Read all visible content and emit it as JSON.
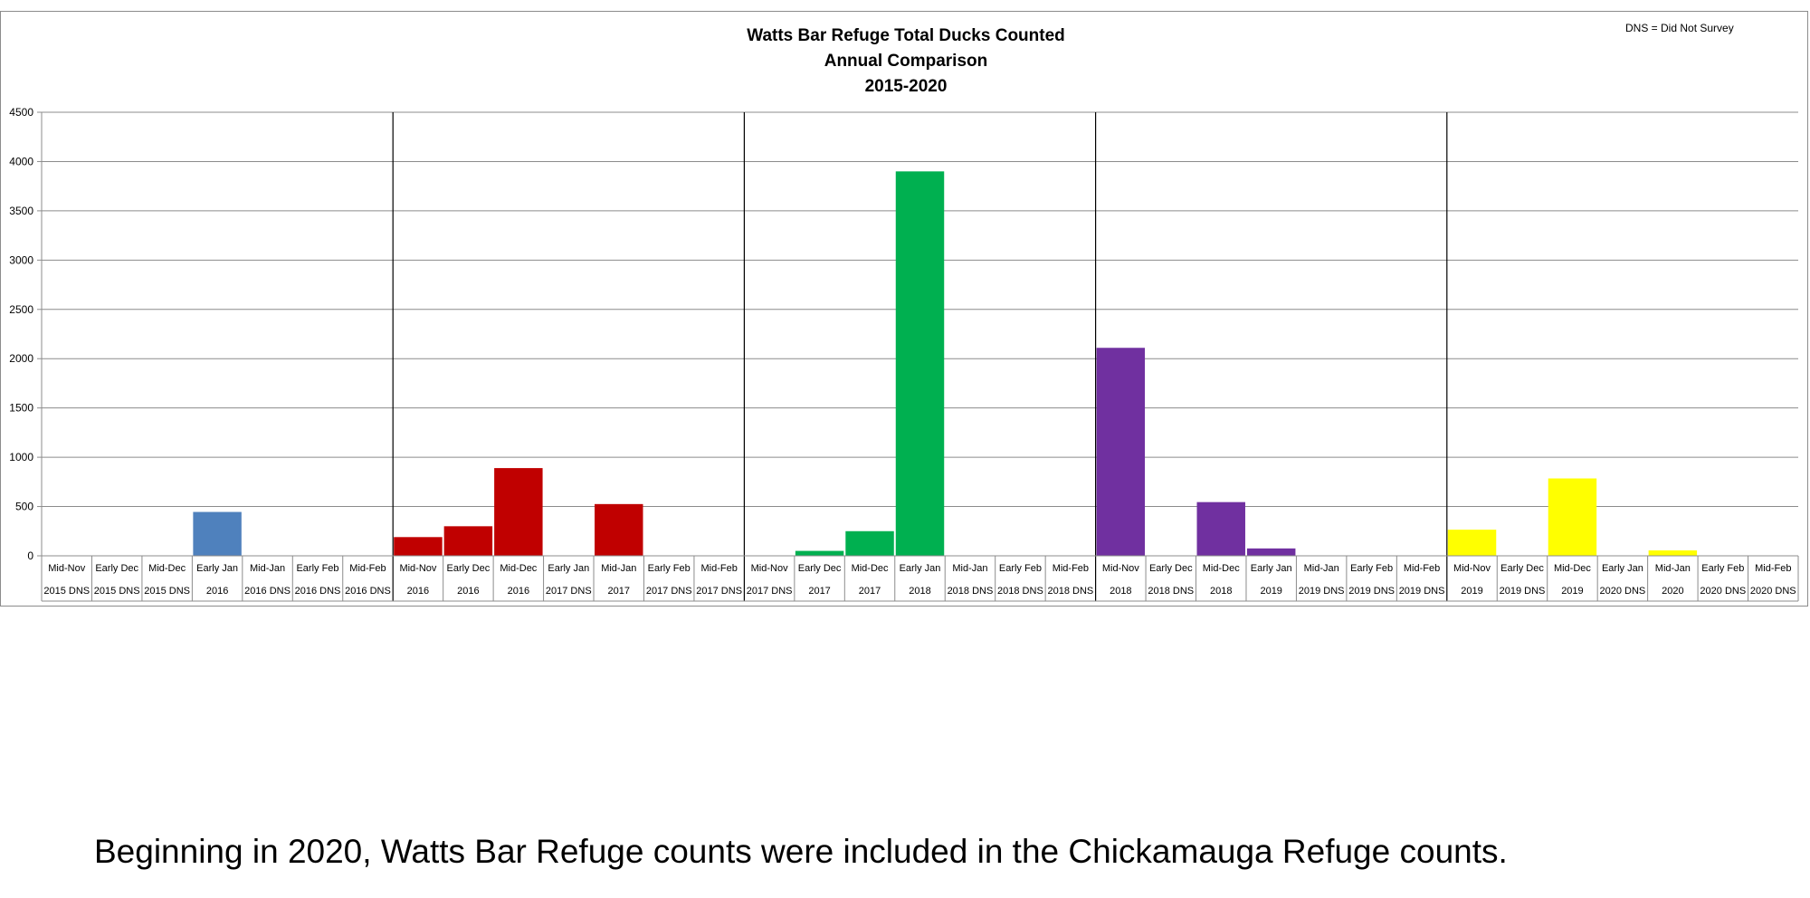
{
  "chart_data": {
    "type": "bar",
    "title": [
      "Watts Bar Refuge Total Ducks Counted",
      "Annual Comparison",
      "2015-2020"
    ],
    "note": "DNS = Did Not Survey",
    "ylim": [
      0,
      4500
    ],
    "yticks": [
      0,
      500,
      1000,
      1500,
      2000,
      2500,
      3000,
      3500,
      4000,
      4500
    ],
    "grid": true,
    "season_colors": [
      "#4f81bd",
      "#c00000",
      "#00b050",
      "#7030a0",
      "#ffff00"
    ],
    "season_boundaries": [
      7,
      14,
      21,
      28
    ],
    "categories": [
      {
        "line1": "Mid-Nov",
        "line2": "2015 DNS",
        "value": 0,
        "season": 0
      },
      {
        "line1": "Early Dec",
        "line2": "2015 DNS",
        "value": 0,
        "season": 0
      },
      {
        "line1": "Mid-Dec",
        "line2": "2015 DNS",
        "value": 0,
        "season": 0
      },
      {
        "line1": "Early Jan",
        "line2": "2016",
        "value": 445,
        "season": 0
      },
      {
        "line1": "Mid-Jan",
        "line2": "2016 DNS",
        "value": 0,
        "season": 0
      },
      {
        "line1": "Early Feb",
        "line2": "2016 DNS",
        "value": 0,
        "season": 0
      },
      {
        "line1": "Mid-Feb",
        "line2": "2016 DNS",
        "value": 0,
        "season": 0
      },
      {
        "line1": "Mid-Nov",
        "line2": "2016",
        "value": 190,
        "season": 1
      },
      {
        "line1": "Early Dec",
        "line2": "2016",
        "value": 300,
        "season": 1
      },
      {
        "line1": "Mid-Dec",
        "line2": "2016",
        "value": 890,
        "season": 1
      },
      {
        "line1": "Early Jan",
        "line2": "2017 DNS",
        "value": 0,
        "season": 1
      },
      {
        "line1": "Mid-Jan",
        "line2": "2017",
        "value": 525,
        "season": 1
      },
      {
        "line1": "Early Feb",
        "line2": "2017 DNS",
        "value": 0,
        "season": 1
      },
      {
        "line1": "Mid-Feb",
        "line2": "2017 DNS",
        "value": 0,
        "season": 1
      },
      {
        "line1": "Mid-Nov",
        "line2": "2017 DNS",
        "value": 0,
        "season": 2
      },
      {
        "line1": "Early Dec",
        "line2": "2017",
        "value": 50,
        "season": 2
      },
      {
        "line1": "Mid-Dec",
        "line2": "2017",
        "value": 250,
        "season": 2
      },
      {
        "line1": "Early Jan",
        "line2": "2018",
        "value": 3900,
        "season": 2
      },
      {
        "line1": "Mid-Jan",
        "line2": "2018 DNS",
        "value": 0,
        "season": 2
      },
      {
        "line1": "Early Feb",
        "line2": "2018 DNS",
        "value": 0,
        "season": 2
      },
      {
        "line1": "Mid-Feb",
        "line2": "2018 DNS",
        "value": 0,
        "season": 2
      },
      {
        "line1": "Mid-Nov",
        "line2": "2018",
        "value": 2110,
        "season": 3
      },
      {
        "line1": "Early Dec",
        "line2": "2018 DNS",
        "value": 0,
        "season": 3
      },
      {
        "line1": "Mid-Dec",
        "line2": "2018",
        "value": 545,
        "season": 3
      },
      {
        "line1": "Early Jan",
        "line2": "2019",
        "value": 75,
        "season": 3
      },
      {
        "line1": "Mid-Jan",
        "line2": "2019 DNS",
        "value": 0,
        "season": 3
      },
      {
        "line1": "Early Feb",
        "line2": "2019 DNS",
        "value": 0,
        "season": 3
      },
      {
        "line1": "Mid-Feb",
        "line2": "2019 DNS",
        "value": 0,
        "season": 3
      },
      {
        "line1": "Mid-Nov",
        "line2": "2019",
        "value": 265,
        "season": 4
      },
      {
        "line1": "Early Dec",
        "line2": "2019 DNS",
        "value": 0,
        "season": 4
      },
      {
        "line1": "Mid-Dec",
        "line2": "2019",
        "value": 785,
        "season": 4
      },
      {
        "line1": "Early Jan",
        "line2": "2020 DNS",
        "value": 0,
        "season": 4
      },
      {
        "line1": "Mid-Jan",
        "line2": "2020",
        "value": 55,
        "season": 4
      },
      {
        "line1": "Early Feb",
        "line2": "2020 DNS",
        "value": 0,
        "season": 4
      },
      {
        "line1": "Mid-Feb",
        "line2": "2020 DNS",
        "value": 0,
        "season": 4
      }
    ]
  },
  "footer_note": "Beginning in 2020, Watts Bar Refuge counts were included in the Chickamauga Refuge counts."
}
